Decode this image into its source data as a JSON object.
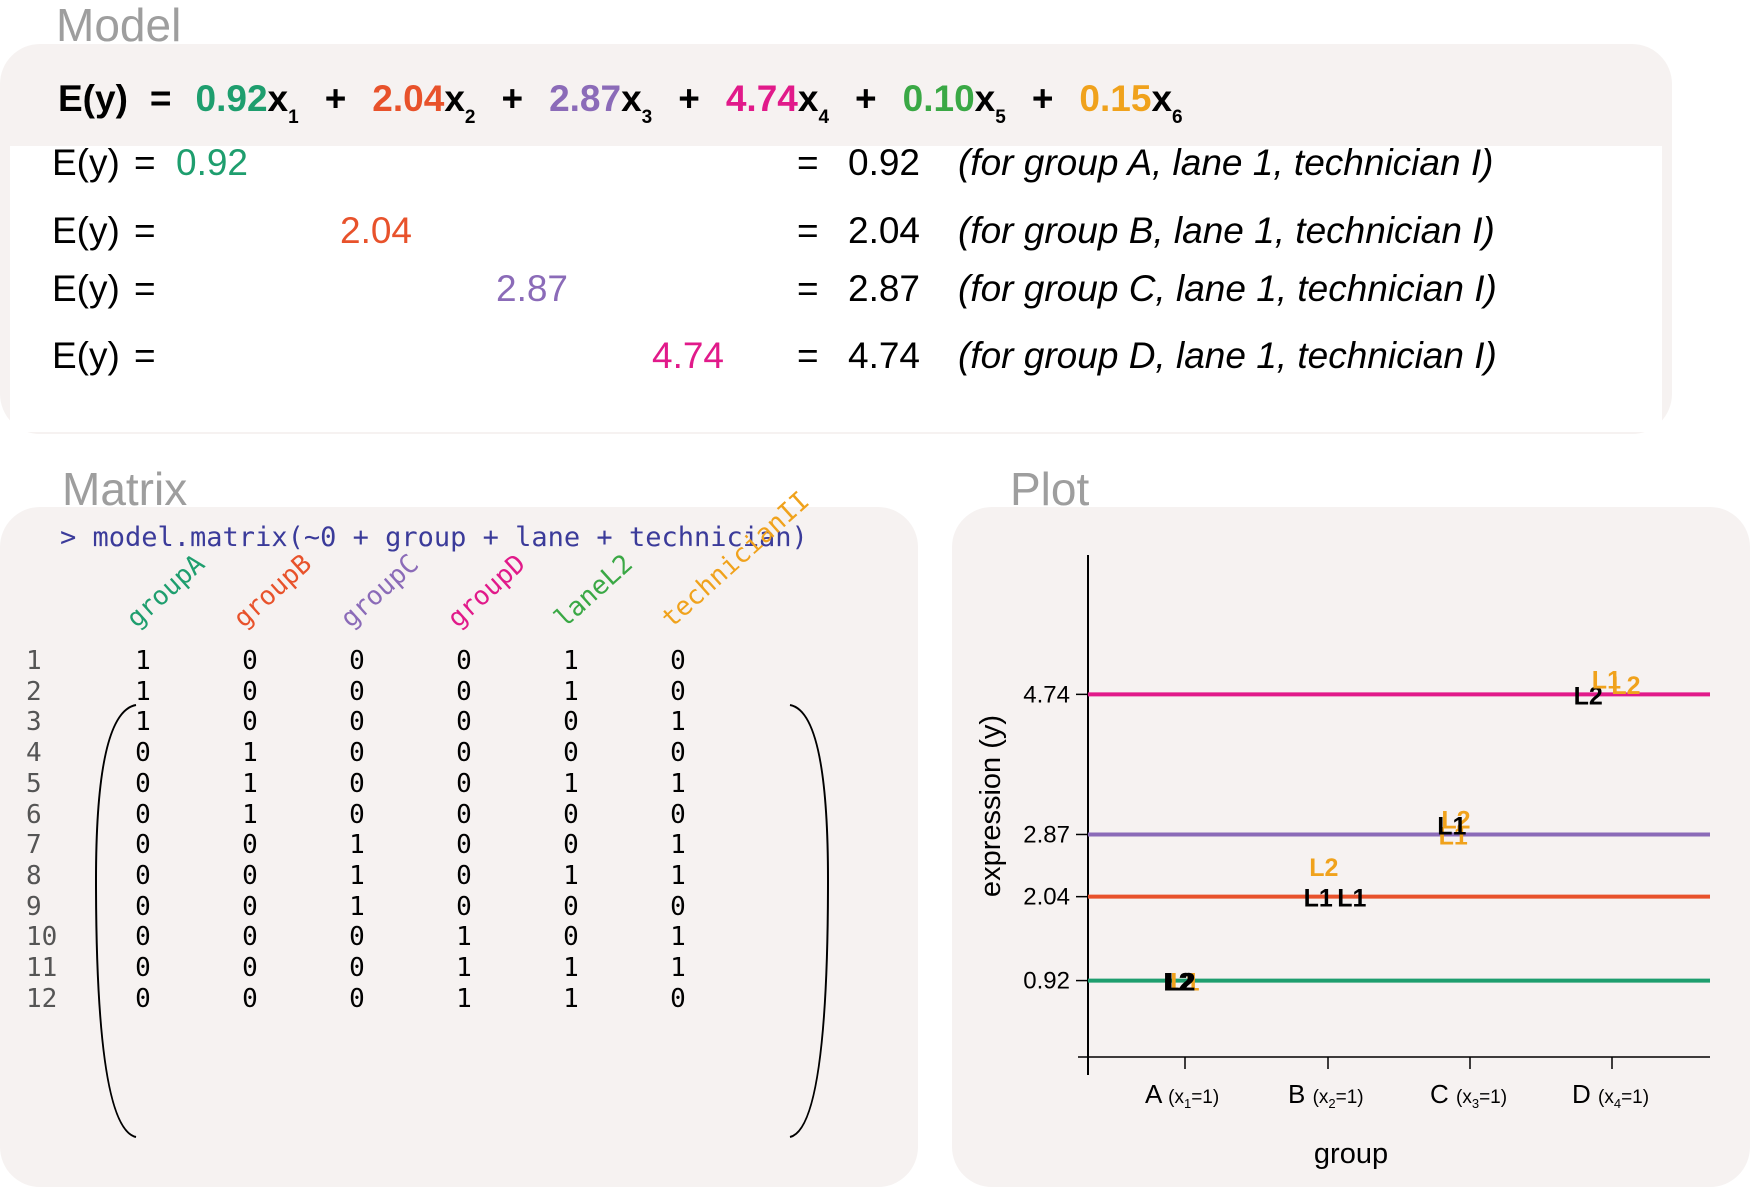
{
  "sections": {
    "model": "Model",
    "matrix": "Matrix",
    "plot": "Plot"
  },
  "colors": {
    "A": "#1e9e6e",
    "B": "#e8522b",
    "C": "#8b6bb8",
    "D": "#e11a8a",
    "lane": "#3aa845",
    "tech": "#f0a21c"
  },
  "equation": {
    "lhs": "E(y)",
    "eq": "=",
    "terms": [
      {
        "coef": "0.92",
        "var": "x",
        "sub": "1",
        "color": "#1e9e6e"
      },
      {
        "coef": "2.04",
        "var": "x",
        "sub": "2",
        "color": "#e8522b"
      },
      {
        "coef": "2.87",
        "var": "x",
        "sub": "3",
        "color": "#8b6bb8"
      },
      {
        "coef": "4.74",
        "var": "x",
        "sub": "4",
        "color": "#e11a8a"
      },
      {
        "coef": "0.10",
        "var": "x",
        "sub": "5",
        "color": "#3aa845"
      },
      {
        "coef": "0.15",
        "var": "x",
        "sub": "6",
        "color": "#f0a21c"
      }
    ],
    "plus": "+"
  },
  "rows": [
    {
      "lhs": "E(y)",
      "eq": "=",
      "value": "0.92",
      "color": "#1e9e6e",
      "eq2": "=",
      "result": "0.92",
      "note": "(for group A, lane 1, technician I)"
    },
    {
      "lhs": "E(y)",
      "eq": "=",
      "value": "2.04",
      "color": "#e8522b",
      "eq2": "=",
      "result": "2.04",
      "note": "(for group B, lane 1, technician I)"
    },
    {
      "lhs": "E(y)",
      "eq": "=",
      "value": "2.87",
      "color": "#8b6bb8",
      "eq2": "=",
      "result": "2.87",
      "note": "(for group C, lane 1, technician I)"
    },
    {
      "lhs": "E(y)",
      "eq": "=",
      "value": "4.74",
      "color": "#e11a8a",
      "eq2": "=",
      "result": "4.74",
      "note": "(for group D, lane 1, technician I)"
    }
  ],
  "matrix": {
    "command": "> model.matrix(~0 + group + lane + technician)",
    "columns": [
      {
        "name": "groupA",
        "color": "#1e9e6e"
      },
      {
        "name": "groupB",
        "color": "#e8522b"
      },
      {
        "name": "groupC",
        "color": "#8b6bb8"
      },
      {
        "name": "groupD",
        "color": "#e11a8a"
      },
      {
        "name": "laneL2",
        "color": "#3aa845"
      },
      {
        "name": "technicianII",
        "color": "#f0a21c"
      }
    ],
    "row_labels": [
      "1",
      "2",
      "3",
      "4",
      "5",
      "6",
      "7",
      "8",
      "9",
      "10",
      "11",
      "12"
    ],
    "values": [
      [
        "1",
        "0",
        "0",
        "0",
        "1",
        "0"
      ],
      [
        "1",
        "0",
        "0",
        "0",
        "1",
        "0"
      ],
      [
        "1",
        "0",
        "0",
        "0",
        "0",
        "1"
      ],
      [
        "0",
        "1",
        "0",
        "0",
        "0",
        "0"
      ],
      [
        "0",
        "1",
        "0",
        "0",
        "1",
        "1"
      ],
      [
        "0",
        "1",
        "0",
        "0",
        "0",
        "0"
      ],
      [
        "0",
        "0",
        "1",
        "0",
        "0",
        "1"
      ],
      [
        "0",
        "0",
        "1",
        "0",
        "1",
        "1"
      ],
      [
        "0",
        "0",
        "1",
        "0",
        "0",
        "0"
      ],
      [
        "0",
        "0",
        "0",
        "1",
        "0",
        "1"
      ],
      [
        "0",
        "0",
        "0",
        "1",
        "1",
        "1"
      ],
      [
        "0",
        "0",
        "0",
        "1",
        "1",
        "0"
      ]
    ]
  },
  "chart_data": {
    "type": "line",
    "xlabel": "group",
    "ylabel": "expression (y)",
    "categories": [
      "A",
      "B",
      "C",
      "D"
    ],
    "category_labels": [
      {
        "main": "A",
        "sub": "(x",
        "idx": "1",
        "post": "=1)"
      },
      {
        "main": "B",
        "sub": "(x",
        "idx": "2",
        "post": "=1)"
      },
      {
        "main": "C",
        "sub": "(x",
        "idx": "3",
        "post": "=1)"
      },
      {
        "main": "D",
        "sub": "(x",
        "idx": "4",
        "post": "=1)"
      }
    ],
    "yticks": [
      "0.92",
      "2.04",
      "2.87",
      "4.74"
    ],
    "ylim": [
      -0.1,
      6.6
    ],
    "lines": [
      {
        "value": 0.92,
        "color": "#1e9e6e"
      },
      {
        "value": 2.04,
        "color": "#e8522b"
      },
      {
        "value": 2.87,
        "color": "#8b6bb8"
      },
      {
        "value": 4.74,
        "color": "#e11a8a"
      }
    ],
    "points": [
      {
        "label": "L1",
        "cat": 0,
        "offset": 0.0,
        "y": 0.92,
        "color": "#f0a21c"
      },
      {
        "label": "L2",
        "cat": 0,
        "offset": -0.05,
        "y": 0.92,
        "color": "#000000"
      },
      {
        "label": "L2",
        "cat": 0,
        "offset": -0.03,
        "y": 0.92,
        "color": "#000000"
      },
      {
        "label": "L2",
        "cat": 1,
        "offset": -0.03,
        "y": 2.45,
        "color": "#f0a21c"
      },
      {
        "label": "L1",
        "cat": 1,
        "offset": -0.07,
        "y": 2.04,
        "color": "#000000"
      },
      {
        "label": "L1",
        "cat": 1,
        "offset": 0.17,
        "y": 2.04,
        "color": "#000000"
      },
      {
        "label": "L1",
        "cat": 2,
        "offset": -0.12,
        "y": 2.87,
        "color": "#f0a21c"
      },
      {
        "label": "L2",
        "cat": 2,
        "offset": -0.1,
        "y": 3.08,
        "color": "#f0a21c"
      },
      {
        "label": "L1",
        "cat": 2,
        "offset": -0.13,
        "y": 3.0,
        "color": "#000000"
      },
      {
        "label": "L2",
        "cat": 3,
        "offset": -0.17,
        "y": 4.74,
        "color": "#000000"
      },
      {
        "label": "L1",
        "cat": 3,
        "offset": -0.04,
        "y": 4.95,
        "color": "#f0a21c"
      },
      {
        "label": "L2",
        "cat": 3,
        "offset": 0.1,
        "y": 4.88,
        "color": "#f0a21c"
      }
    ]
  }
}
